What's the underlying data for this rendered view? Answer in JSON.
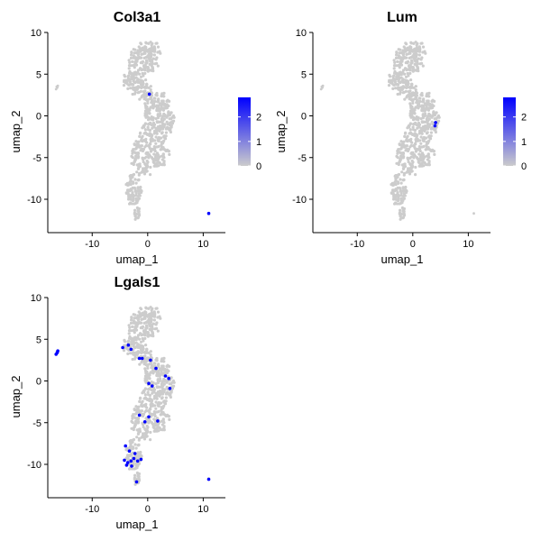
{
  "figure": {
    "panels": [
      {
        "title": "Col3a1",
        "xlabel": "umap_1",
        "ylabel": "umap_2"
      },
      {
        "title": "Lum",
        "xlabel": "umap_1",
        "ylabel": "umap_2"
      },
      {
        "title": "Lgals1",
        "xlabel": "umap_1",
        "ylabel": "umap_2"
      }
    ]
  },
  "chart_data": [
    {
      "type": "scatter",
      "title": "Col3a1",
      "xlabel": "umap_1",
      "ylabel": "umap_2",
      "xlim": [
        -18,
        14
      ],
      "ylim": [
        -14,
        10
      ],
      "x_ticks": [
        -10,
        0,
        10
      ],
      "y_ticks": [
        -10,
        -5,
        0,
        5,
        10
      ],
      "colorbar": {
        "low_color": "#cccccc",
        "high_color": "#0000ff",
        "range": [
          0,
          2.8
        ],
        "ticks": [
          0,
          1,
          2
        ]
      },
      "grid": false,
      "highlighted_points": [
        {
          "x": 0.3,
          "y": 2.6,
          "value": 2.8
        },
        {
          "x": 11.0,
          "y": -11.7,
          "value": 2.8
        }
      ]
    },
    {
      "type": "scatter",
      "title": "Lum",
      "xlabel": "umap_1",
      "ylabel": "umap_2",
      "xlim": [
        -18,
        14
      ],
      "ylim": [
        -14,
        10
      ],
      "x_ticks": [
        -10,
        0,
        10
      ],
      "y_ticks": [
        -10,
        -5,
        0,
        5,
        10
      ],
      "colorbar": {
        "low_color": "#cccccc",
        "high_color": "#0000ff",
        "range": [
          0,
          2.8
        ],
        "ticks": [
          0,
          1,
          2
        ]
      },
      "grid": false,
      "highlighted_points": [
        {
          "x": 4.1,
          "y": -0.8,
          "value": 2.8
        },
        {
          "x": 4.0,
          "y": -1.2,
          "value": 2.5
        }
      ]
    },
    {
      "type": "scatter",
      "title": "Lgals1",
      "xlabel": "umap_1",
      "ylabel": "umap_2",
      "xlim": [
        -18,
        14
      ],
      "ylim": [
        -14,
        10
      ],
      "x_ticks": [
        -10,
        0,
        10
      ],
      "y_ticks": [
        -10,
        -5,
        0,
        5,
        10
      ],
      "colorbar": null,
      "grid": false,
      "highlighted_points": [
        {
          "x": -16.3,
          "y": 3.4,
          "value": 1
        },
        {
          "x": -16.5,
          "y": 3.2,
          "value": 1
        },
        {
          "x": -16.2,
          "y": 3.6,
          "value": 1
        },
        {
          "x": -4.5,
          "y": 4.0,
          "value": 1
        },
        {
          "x": -3.5,
          "y": 4.3,
          "value": 1
        },
        {
          "x": -3.0,
          "y": 3.8,
          "value": 1
        },
        {
          "x": -1.5,
          "y": 2.7,
          "value": 1
        },
        {
          "x": -1.0,
          "y": 2.7,
          "value": 1
        },
        {
          "x": 0.5,
          "y": 2.5,
          "value": 1
        },
        {
          "x": 1.5,
          "y": 1.5,
          "value": 1
        },
        {
          "x": 3.2,
          "y": 0.6,
          "value": 1
        },
        {
          "x": 3.8,
          "y": 0.3,
          "value": 1
        },
        {
          "x": 0.2,
          "y": -0.3,
          "value": 1
        },
        {
          "x": 0.8,
          "y": -0.6,
          "value": 1
        },
        {
          "x": 4.0,
          "y": -0.9,
          "value": 1
        },
        {
          "x": -1.5,
          "y": -4.1,
          "value": 1
        },
        {
          "x": 0.2,
          "y": -4.3,
          "value": 1
        },
        {
          "x": 1.8,
          "y": -4.8,
          "value": 1
        },
        {
          "x": -0.5,
          "y": -4.9,
          "value": 1
        },
        {
          "x": -4.0,
          "y": -7.8,
          "value": 1
        },
        {
          "x": -3.3,
          "y": -8.4,
          "value": 1
        },
        {
          "x": -2.3,
          "y": -8.7,
          "value": 1
        },
        {
          "x": -4.2,
          "y": -9.5,
          "value": 1
        },
        {
          "x": -3.6,
          "y": -9.8,
          "value": 1
        },
        {
          "x": -3.0,
          "y": -9.6,
          "value": 1
        },
        {
          "x": -2.5,
          "y": -9.3,
          "value": 1
        },
        {
          "x": -1.8,
          "y": -9.6,
          "value": 1
        },
        {
          "x": -1.2,
          "y": -9.4,
          "value": 1
        },
        {
          "x": -3.8,
          "y": -10.1,
          "value": 1
        },
        {
          "x": -2.9,
          "y": -10.2,
          "value": 1
        },
        {
          "x": -2.0,
          "y": -12.1,
          "value": 1
        },
        {
          "x": 11.0,
          "y": -11.8,
          "value": 1
        }
      ]
    }
  ]
}
